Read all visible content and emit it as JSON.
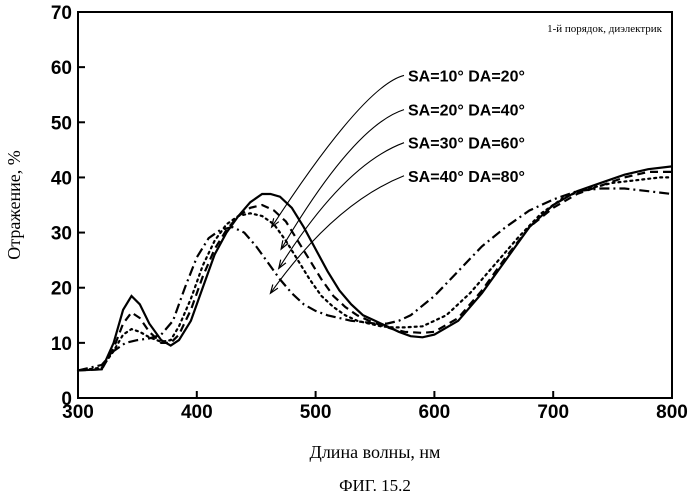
{
  "chart_data": {
    "type": "line",
    "title": "",
    "annotation": "1-й порядок, диэлектрик",
    "xlabel": "Длина волны, нм",
    "ylabel": "Отражение, %",
    "xlim": [
      300,
      800
    ],
    "ylim": [
      0,
      70
    ],
    "xticks": [
      300,
      400,
      500,
      600,
      700,
      800
    ],
    "yticks": [
      0,
      10,
      20,
      30,
      40,
      50,
      60,
      70
    ],
    "grid": false,
    "legend_placement": "top-right",
    "caption": "ФИГ. 15.2",
    "series": [
      {
        "name": "SA=10° DA=20°",
        "style": "solid",
        "x": [
          300,
          320,
          330,
          338,
          345,
          352,
          360,
          370,
          378,
          385,
          395,
          405,
          415,
          425,
          435,
          445,
          455,
          462,
          470,
          480,
          490,
          500,
          510,
          520,
          530,
          540,
          550,
          560,
          570,
          580,
          590,
          600,
          620,
          640,
          660,
          680,
          700,
          720,
          740,
          760,
          780,
          800
        ],
        "y": [
          5,
          5.2,
          10,
          16,
          18.5,
          17,
          13.5,
          10.5,
          9.5,
          10.5,
          14,
          20,
          26,
          30,
          33,
          35.5,
          37,
          37,
          36.5,
          34.5,
          31,
          27,
          23,
          19.5,
          17,
          15,
          14,
          13,
          12,
          11.2,
          11,
          11.5,
          14,
          19,
          25,
          31,
          35,
          37.5,
          39,
          40.5,
          41.5,
          42
        ]
      },
      {
        "name": "SA=20° DA=40°",
        "style": "dashed",
        "x": [
          300,
          320,
          330,
          338,
          345,
          352,
          360,
          370,
          378,
          385,
          395,
          405,
          415,
          425,
          435,
          445,
          455,
          465,
          475,
          485,
          495,
          505,
          515,
          525,
          535,
          545,
          555,
          565,
          575,
          590,
          600,
          620,
          640,
          660,
          680,
          700,
          720,
          740,
          760,
          780,
          800
        ],
        "y": [
          5,
          5.2,
          9,
          13.5,
          15.5,
          14.5,
          12,
          10,
          10,
          11.5,
          16,
          22,
          27,
          30.5,
          33,
          34.5,
          35,
          34,
          32,
          28.5,
          25,
          21.5,
          18.5,
          16.5,
          15,
          14,
          13.2,
          12.5,
          12,
          11.8,
          12,
          14.5,
          19.5,
          25.5,
          31,
          34.5,
          37,
          38.5,
          40,
          41,
          41
        ]
      },
      {
        "name": "SA=30° DA=60°",
        "style": "dotted",
        "x": [
          300,
          320,
          330,
          338,
          345,
          352,
          360,
          370,
          378,
          385,
          395,
          405,
          415,
          425,
          435,
          445,
          455,
          465,
          475,
          485,
          495,
          505,
          515,
          525,
          535,
          545,
          555,
          565,
          575,
          590,
          610,
          630,
          650,
          670,
          690,
          710,
          730,
          750,
          770,
          790,
          800
        ],
        "y": [
          5,
          5.5,
          8.5,
          11.5,
          12.5,
          12,
          11,
          10.2,
          10.5,
          13,
          18,
          24,
          28.5,
          31.5,
          33,
          33.5,
          33,
          31.5,
          28.5,
          25,
          21.5,
          18.5,
          16.5,
          15,
          14,
          13.5,
          13,
          12.8,
          12.8,
          13,
          15,
          19,
          24,
          29,
          33.5,
          36.5,
          38,
          39,
          39.5,
          40,
          40
        ]
      },
      {
        "name": "SA=40° DA=80°",
        "style": "dashdot",
        "x": [
          300,
          320,
          330,
          340,
          350,
          360,
          370,
          380,
          390,
          400,
          410,
          420,
          430,
          440,
          450,
          460,
          470,
          480,
          490,
          500,
          510,
          520,
          530,
          540,
          550,
          560,
          570,
          580,
          600,
          620,
          640,
          660,
          680,
          700,
          720,
          740,
          760,
          780,
          800
        ],
        "y": [
          5,
          6,
          8.5,
          10,
          10.5,
          10.8,
          11.5,
          14,
          20,
          25.5,
          29,
          30.5,
          31,
          30,
          27.5,
          24.5,
          21.5,
          19,
          17,
          15.8,
          15,
          14.5,
          14,
          13.8,
          13.5,
          13.5,
          14,
          15,
          18.5,
          23,
          27.5,
          31,
          34,
          36,
          37.5,
          38,
          38,
          37.5,
          37
        ]
      }
    ]
  }
}
